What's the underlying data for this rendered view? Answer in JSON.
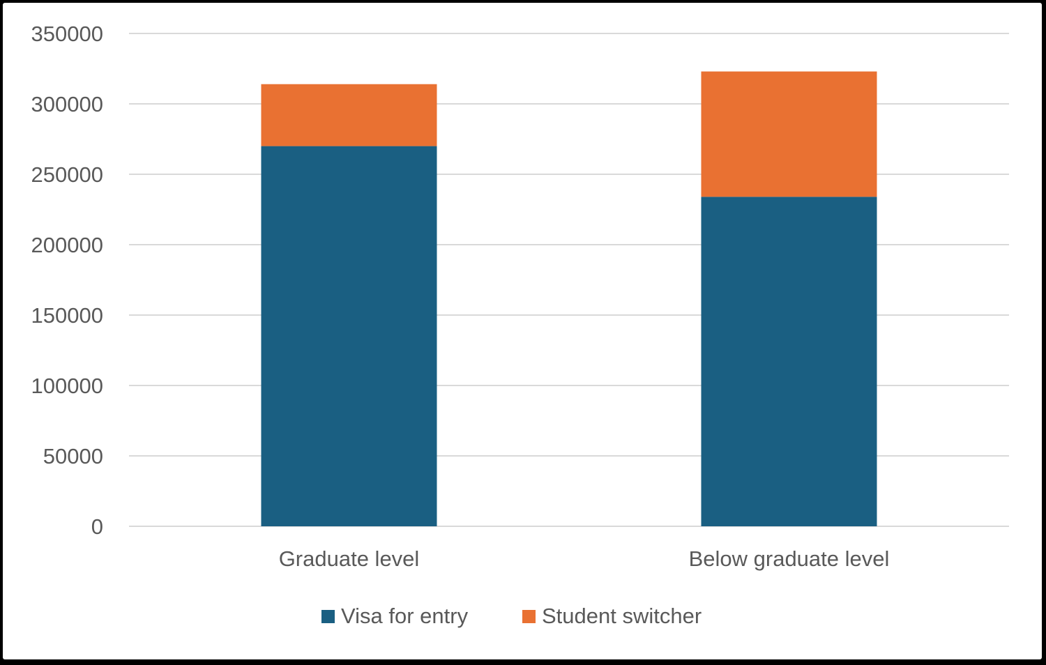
{
  "chart_data": {
    "type": "bar",
    "stacked": true,
    "categories": [
      "Graduate level",
      "Below graduate level"
    ],
    "series": [
      {
        "name": "Visa for entry",
        "color": "#1a5f82",
        "values": [
          270000,
          234000
        ]
      },
      {
        "name": "Student switcher",
        "color": "#e97132",
        "values": [
          44000,
          89000
        ]
      }
    ],
    "title": "",
    "xlabel": "",
    "ylabel": "",
    "ylim": [
      0,
      350000
    ],
    "yticks": [
      "0",
      "50000",
      "100000",
      "150000",
      "200000",
      "250000",
      "300000",
      "350000"
    ],
    "grid": true,
    "legend": "bottom"
  }
}
